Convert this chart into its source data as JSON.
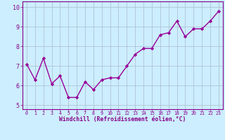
{
  "x": [
    0,
    1,
    2,
    3,
    4,
    5,
    6,
    7,
    8,
    9,
    10,
    11,
    12,
    13,
    14,
    15,
    16,
    17,
    18,
    19,
    20,
    21,
    22,
    23
  ],
  "y": [
    7.1,
    6.3,
    7.4,
    6.1,
    6.5,
    5.4,
    5.4,
    6.2,
    5.8,
    6.3,
    6.4,
    6.4,
    7.0,
    7.6,
    7.9,
    7.9,
    8.6,
    8.7,
    9.3,
    8.5,
    8.9,
    8.9,
    9.3,
    9.8
  ],
  "line_color": "#990099",
  "marker": "D",
  "marker_size": 2.2,
  "line_width": 1.0,
  "bg_color": "#cceeff",
  "grid_color": "#aabbcc",
  "xlabel": "Windchill (Refroidissement éolien,°C)",
  "xlim": [
    -0.5,
    23.5
  ],
  "ylim": [
    4.8,
    10.3
  ],
  "yticks": [
    5,
    6,
    7,
    8,
    9,
    10
  ],
  "xticks": [
    0,
    1,
    2,
    3,
    4,
    5,
    6,
    7,
    8,
    9,
    10,
    11,
    12,
    13,
    14,
    15,
    16,
    17,
    18,
    19,
    20,
    21,
    22,
    23
  ],
  "tick_color": "#880088",
  "label_color": "#880088",
  "axis_color": "#880088",
  "xlabel_fontsize": 5.8,
  "xtick_fontsize": 4.8,
  "ytick_fontsize": 6.0
}
